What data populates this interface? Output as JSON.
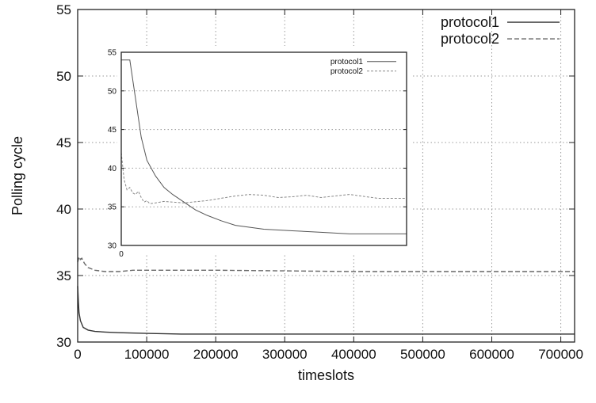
{
  "chart_data": [
    {
      "type": "line",
      "title": "",
      "xlabel": "timeslots",
      "ylabel": "Polling cycle",
      "xlim": [
        0,
        720000
      ],
      "ylim": [
        30,
        55
      ],
      "xticks": [
        0,
        100000,
        200000,
        300000,
        400000,
        500000,
        600000,
        700000
      ],
      "xtick_labels": [
        "0",
        "100000",
        "200000",
        "300000",
        "400000",
        "500000",
        "600000",
        "700000"
      ],
      "yticks": [
        30,
        35,
        40,
        45,
        50,
        55
      ],
      "ytick_labels": [
        "30",
        "35",
        "40",
        "45",
        "50",
        "55"
      ],
      "grid": true,
      "legend_position": "top-right",
      "series": [
        {
          "name": "protocol1",
          "style": "solid",
          "color": "#333333",
          "x": [
            0,
            1000,
            2000,
            4000,
            8000,
            15000,
            25000,
            40000,
            60000,
            100000,
            150000,
            200000,
            300000,
            400000,
            500000,
            600000,
            720000
          ],
          "y": [
            34.2,
            33.0,
            32.2,
            31.6,
            31.1,
            30.9,
            30.8,
            30.75,
            30.7,
            30.65,
            30.6,
            30.6,
            30.6,
            30.6,
            30.6,
            30.6,
            30.6
          ]
        },
        {
          "name": "protocol2",
          "style": "dashed",
          "color": "#666666",
          "x": [
            0,
            2000,
            4000,
            6000,
            10000,
            15000,
            25000,
            40000,
            60000,
            80000,
            120000,
            200000,
            300000,
            400000,
            500000,
            600000,
            720000
          ],
          "y": [
            36.0,
            36.4,
            36.2,
            36.3,
            35.9,
            35.6,
            35.4,
            35.3,
            35.3,
            35.4,
            35.4,
            35.4,
            35.35,
            35.3,
            35.3,
            35.3,
            35.3
          ]
        }
      ]
    },
    {
      "type": "line",
      "title": "",
      "xlabel": "",
      "ylabel": "",
      "xlim": [
        0,
        100
      ],
      "ylim": [
        30,
        55
      ],
      "xticks": [
        0
      ],
      "xtick_labels": [
        "0"
      ],
      "yticks": [
        30,
        35,
        40,
        45,
        50,
        55
      ],
      "ytick_labels": [
        "30",
        "35",
        "40",
        "45",
        "50",
        "55"
      ],
      "grid": true,
      "legend_position": "top-right",
      "series": [
        {
          "name": "protocol1",
          "style": "solid",
          "color": "#555555",
          "x": [
            0,
            3,
            5,
            7,
            9,
            12,
            15,
            18,
            22,
            26,
            30,
            35,
            40,
            50,
            60,
            70,
            80,
            90,
            100
          ],
          "y": [
            54,
            54,
            49,
            44,
            41,
            39,
            37.5,
            36.6,
            35.6,
            34.6,
            33.9,
            33.2,
            32.6,
            32.1,
            31.9,
            31.7,
            31.5,
            31.5,
            31.5
          ]
        },
        {
          "name": "protocol2",
          "style": "dashed",
          "color": "#888888",
          "x": [
            0,
            1,
            2,
            3,
            4,
            5,
            6,
            7,
            8,
            9,
            10,
            12,
            15,
            18,
            22,
            30,
            40,
            45,
            50,
            55,
            60,
            65,
            70,
            75,
            80,
            90,
            100
          ],
          "y": [
            42,
            38.5,
            37.2,
            37.5,
            36.8,
            36.6,
            37.0,
            36.2,
            35.6,
            35.8,
            35.4,
            35.5,
            35.7,
            35.6,
            35.5,
            35.8,
            36.4,
            36.6,
            36.5,
            36.2,
            36.3,
            36.5,
            36.2,
            36.4,
            36.6,
            36.1,
            36.1
          ]
        }
      ]
    }
  ]
}
